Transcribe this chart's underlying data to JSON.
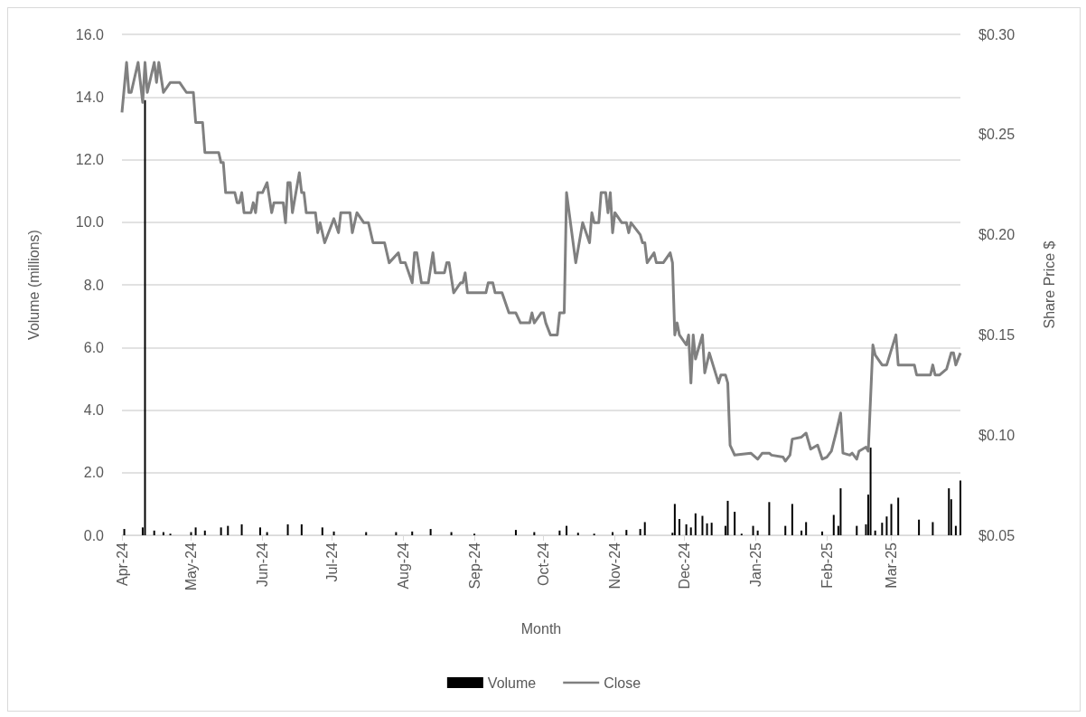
{
  "chart_data": {
    "type": "bar",
    "xlabel": "Month",
    "ylabel": "Volume (millions)",
    "y2label": "Share Price $",
    "xlim": [
      "2024-04-01",
      "2025-03-31"
    ],
    "xticks": [
      {
        "value": "2024-04-01",
        "label": "Apr-24"
      },
      {
        "value": "2024-05-01",
        "label": "May-24"
      },
      {
        "value": "2024-06-01",
        "label": "Jun-24"
      },
      {
        "value": "2024-07-01",
        "label": "Jul-24"
      },
      {
        "value": "2024-08-01",
        "label": "Aug-24"
      },
      {
        "value": "2024-09-01",
        "label": "Sep-24"
      },
      {
        "value": "2024-10-01",
        "label": "Oct-24"
      },
      {
        "value": "2024-11-01",
        "label": "Nov-24"
      },
      {
        "value": "2024-12-01",
        "label": "Dec-24"
      },
      {
        "value": "2025-01-01",
        "label": "Jan-25"
      },
      {
        "value": "2025-02-01",
        "label": "Feb-25"
      },
      {
        "value": "2025-03-01",
        "label": "Mar-25"
      }
    ],
    "ylim": [
      0,
      16
    ],
    "yticks": [
      {
        "value": 0,
        "label": "0.0"
      },
      {
        "value": 2,
        "label": "2.0"
      },
      {
        "value": 4,
        "label": "4.0"
      },
      {
        "value": 6,
        "label": "6.0"
      },
      {
        "value": 8,
        "label": "8.0"
      },
      {
        "value": 10,
        "label": "10.0"
      },
      {
        "value": 12,
        "label": "12.0"
      },
      {
        "value": 14,
        "label": "14.0"
      },
      {
        "value": 16,
        "label": "16.0"
      }
    ],
    "y2lim": [
      0.05,
      0.3
    ],
    "y2ticks": [
      {
        "value": 0.05,
        "label": "$0.05"
      },
      {
        "value": 0.1,
        "label": "$0.10"
      },
      {
        "value": 0.15,
        "label": "$0.15"
      },
      {
        "value": 0.2,
        "label": "$0.20"
      },
      {
        "value": 0.25,
        "label": "$0.25"
      },
      {
        "value": 0.3,
        "label": "$0.30"
      }
    ],
    "grid": "y",
    "legend": "bottom",
    "series": [
      {
        "name": "Volume",
        "color": "#000000",
        "x": [
          "2024-04-02",
          "2024-04-10",
          "2024-04-11",
          "2024-04-15",
          "2024-04-19",
          "2024-04-22",
          "2024-05-01",
          "2024-05-03",
          "2024-05-07",
          "2024-05-14",
          "2024-05-17",
          "2024-05-23",
          "2024-05-31",
          "2024-06-03",
          "2024-06-12",
          "2024-06-18",
          "2024-06-27",
          "2024-07-02",
          "2024-07-16",
          "2024-07-29",
          "2024-08-05",
          "2024-08-13",
          "2024-08-22",
          "2024-09-01",
          "2024-09-19",
          "2024-09-27",
          "2024-10-08",
          "2024-10-11",
          "2024-10-16",
          "2024-10-23",
          "2024-10-31",
          "2024-11-06",
          "2024-11-12",
          "2024-11-14",
          "2024-11-26",
          "2024-11-27",
          "2024-11-29",
          "2024-12-02",
          "2024-12-04",
          "2024-12-06",
          "2024-12-09",
          "2024-12-11",
          "2024-12-13",
          "2024-12-19",
          "2024-12-20",
          "2024-12-23",
          "2024-12-26",
          "2024-12-31",
          "2025-01-02",
          "2025-01-07",
          "2025-01-14",
          "2025-01-17",
          "2025-01-21",
          "2025-01-23",
          "2025-01-30",
          "2025-02-04",
          "2025-02-06",
          "2025-02-07",
          "2025-02-14",
          "2025-02-18",
          "2025-02-19",
          "2025-02-20",
          "2025-02-22",
          "2025-02-25",
          "2025-02-27",
          "2025-03-01",
          "2025-03-04",
          "2025-03-13",
          "2025-03-19",
          "2025-03-26",
          "2025-03-27",
          "2025-03-29",
          "2025-03-31"
        ],
        "values": [
          0.2,
          0.25,
          13.9,
          0.15,
          0.1,
          0.05,
          0.1,
          0.25,
          0.15,
          0.25,
          0.3,
          0.35,
          0.25,
          0.1,
          0.35,
          0.35,
          0.25,
          0.12,
          0.1,
          0.1,
          0.12,
          0.2,
          0.1,
          0.05,
          0.17,
          0.1,
          0.15,
          0.3,
          0.08,
          0.05,
          0.1,
          0.17,
          0.2,
          0.42,
          0.08,
          1.0,
          0.52,
          0.35,
          0.25,
          0.7,
          0.62,
          0.38,
          0.4,
          0.3,
          1.1,
          0.75,
          0.05,
          0.3,
          0.15,
          1.06,
          0.3,
          1.0,
          0.15,
          0.42,
          0.12,
          0.65,
          0.3,
          1.5,
          0.3,
          0.35,
          1.3,
          2.8,
          0.15,
          0.4,
          0.6,
          1.0,
          1.2,
          0.5,
          0.42,
          1.5,
          1.15,
          0.3,
          1.75
        ]
      },
      {
        "name": "Close",
        "type": "line",
        "axis": "y2",
        "color": "#808080",
        "marker": "none",
        "x": [
          "2024-04-01",
          "2024-04-03",
          "2024-04-04",
          "2024-04-05",
          "2024-04-08",
          "2024-04-10",
          "2024-04-11",
          "2024-04-12",
          "2024-04-15",
          "2024-04-16",
          "2024-04-17",
          "2024-04-19",
          "2024-04-22",
          "2024-04-26",
          "2024-04-29",
          "2024-05-02",
          "2024-05-03",
          "2024-05-06",
          "2024-05-07",
          "2024-05-13",
          "2024-05-14",
          "2024-05-15",
          "2024-05-16",
          "2024-05-20",
          "2024-05-21",
          "2024-05-22",
          "2024-05-23",
          "2024-05-24",
          "2024-05-27",
          "2024-05-28",
          "2024-05-29",
          "2024-05-30",
          "2024-06-01",
          "2024-06-03",
          "2024-06-05",
          "2024-06-06",
          "2024-06-10",
          "2024-06-11",
          "2024-06-12",
          "2024-06-13",
          "2024-06-14",
          "2024-06-17",
          "2024-06-18",
          "2024-06-19",
          "2024-06-20",
          "2024-06-24",
          "2024-06-25",
          "2024-06-26",
          "2024-06-28",
          "2024-07-02",
          "2024-07-04",
          "2024-07-05",
          "2024-07-09",
          "2024-07-10",
          "2024-07-12",
          "2024-07-15",
          "2024-07-17",
          "2024-07-19",
          "2024-07-24",
          "2024-07-26",
          "2024-07-30",
          "2024-07-31",
          "2024-08-02",
          "2024-08-05",
          "2024-08-06",
          "2024-08-07",
          "2024-08-09",
          "2024-08-12",
          "2024-08-14",
          "2024-08-15",
          "2024-08-19",
          "2024-08-20",
          "2024-08-21",
          "2024-08-23",
          "2024-08-26",
          "2024-08-27",
          "2024-08-28",
          "2024-08-29",
          "2024-09-06",
          "2024-09-07",
          "2024-09-09",
          "2024-09-10",
          "2024-09-13",
          "2024-09-16",
          "2024-09-19",
          "2024-09-21",
          "2024-09-25",
          "2024-09-26",
          "2024-09-27",
          "2024-09-30",
          "2024-10-01",
          "2024-10-02",
          "2024-10-04",
          "2024-10-07",
          "2024-10-08",
          "2024-10-10",
          "2024-10-11",
          "2024-10-15",
          "2024-10-18",
          "2024-10-21",
          "2024-10-22",
          "2024-10-23",
          "2024-10-25",
          "2024-10-26",
          "2024-10-28",
          "2024-10-29",
          "2024-10-30",
          "2024-10-31",
          "2024-11-01",
          "2024-11-04",
          "2024-11-06",
          "2024-11-07",
          "2024-11-08",
          "2024-11-12",
          "2024-11-13",
          "2024-11-14",
          "2024-11-15",
          "2024-11-18",
          "2024-11-19",
          "2024-11-22",
          "2024-11-25",
          "2024-11-26",
          "2024-11-27",
          "2024-11-28",
          "2024-11-29",
          "2024-12-02",
          "2024-12-03",
          "2024-12-04",
          "2024-12-05",
          "2024-12-06",
          "2024-12-09",
          "2024-12-10",
          "2024-12-12",
          "2024-12-16",
          "2024-12-17",
          "2024-12-19",
          "2024-12-20",
          "2024-12-21",
          "2024-12-23",
          "2024-12-30",
          "2025-01-02",
          "2025-01-04",
          "2025-01-07",
          "2025-01-08",
          "2025-01-13",
          "2025-01-14",
          "2025-01-16",
          "2025-01-17",
          "2025-01-21",
          "2025-01-23",
          "2025-01-25",
          "2025-01-28",
          "2025-01-30",
          "2025-02-01",
          "2025-02-03",
          "2025-02-05",
          "2025-02-07",
          "2025-02-08",
          "2025-02-11",
          "2025-02-12",
          "2025-02-14",
          "2025-02-15",
          "2025-02-18",
          "2025-02-19",
          "2025-02-21",
          "2025-02-22",
          "2025-02-25",
          "2025-02-27",
          "2025-03-03",
          "2025-03-04",
          "2025-03-11",
          "2025-03-12",
          "2025-03-18",
          "2025-03-19",
          "2025-03-20",
          "2025-03-22",
          "2025-03-25",
          "2025-03-27",
          "2025-03-28",
          "2025-03-29",
          "2025-03-31"
        ],
        "values": [
          0.261,
          0.286,
          0.271,
          0.271,
          0.286,
          0.266,
          0.286,
          0.271,
          0.286,
          0.276,
          0.286,
          0.271,
          0.276,
          0.276,
          0.271,
          0.271,
          0.256,
          0.256,
          0.241,
          0.241,
          0.236,
          0.236,
          0.221,
          0.221,
          0.216,
          0.216,
          0.221,
          0.211,
          0.211,
          0.216,
          0.211,
          0.221,
          0.221,
          0.226,
          0.211,
          0.216,
          0.216,
          0.206,
          0.226,
          0.226,
          0.211,
          0.231,
          0.221,
          0.221,
          0.211,
          0.211,
          0.201,
          0.206,
          0.196,
          0.208,
          0.201,
          0.211,
          0.211,
          0.201,
          0.211,
          0.206,
          0.206,
          0.196,
          0.196,
          0.186,
          0.191,
          0.186,
          0.186,
          0.176,
          0.191,
          0.191,
          0.176,
          0.176,
          0.191,
          0.181,
          0.181,
          0.186,
          0.186,
          0.171,
          0.176,
          0.176,
          0.181,
          0.171,
          0.171,
          0.176,
          0.176,
          0.171,
          0.171,
          0.161,
          0.161,
          0.156,
          0.156,
          0.161,
          0.156,
          0.161,
          0.161,
          0.156,
          0.15,
          0.15,
          0.161,
          0.161,
          0.221,
          0.186,
          0.206,
          0.196,
          0.211,
          0.206,
          0.206,
          0.221,
          0.221,
          0.211,
          0.221,
          0.201,
          0.211,
          0.206,
          0.206,
          0.201,
          0.206,
          0.2,
          0.196,
          0.196,
          0.186,
          0.191,
          0.186,
          0.186,
          0.191,
          0.186,
          0.15,
          0.156,
          0.15,
          0.145,
          0.15,
          0.126,
          0.15,
          0.138,
          0.15,
          0.131,
          0.141,
          0.126,
          0.13,
          0.13,
          0.126,
          0.095,
          0.09,
          0.091,
          0.088,
          0.091,
          0.091,
          0.09,
          0.089,
          0.087,
          0.09,
          0.098,
          0.099,
          0.101,
          0.093,
          0.095,
          0.088,
          0.089,
          0.092,
          0.101,
          0.111,
          0.091,
          0.09,
          0.091,
          0.088,
          0.092,
          0.094,
          0.092,
          0.145,
          0.14,
          0.135,
          0.135,
          0.15,
          0.135,
          0.135,
          0.13,
          0.13,
          0.135,
          0.13,
          0.13,
          0.133,
          0.141,
          0.141,
          0.135,
          0.141
        ]
      }
    ]
  }
}
